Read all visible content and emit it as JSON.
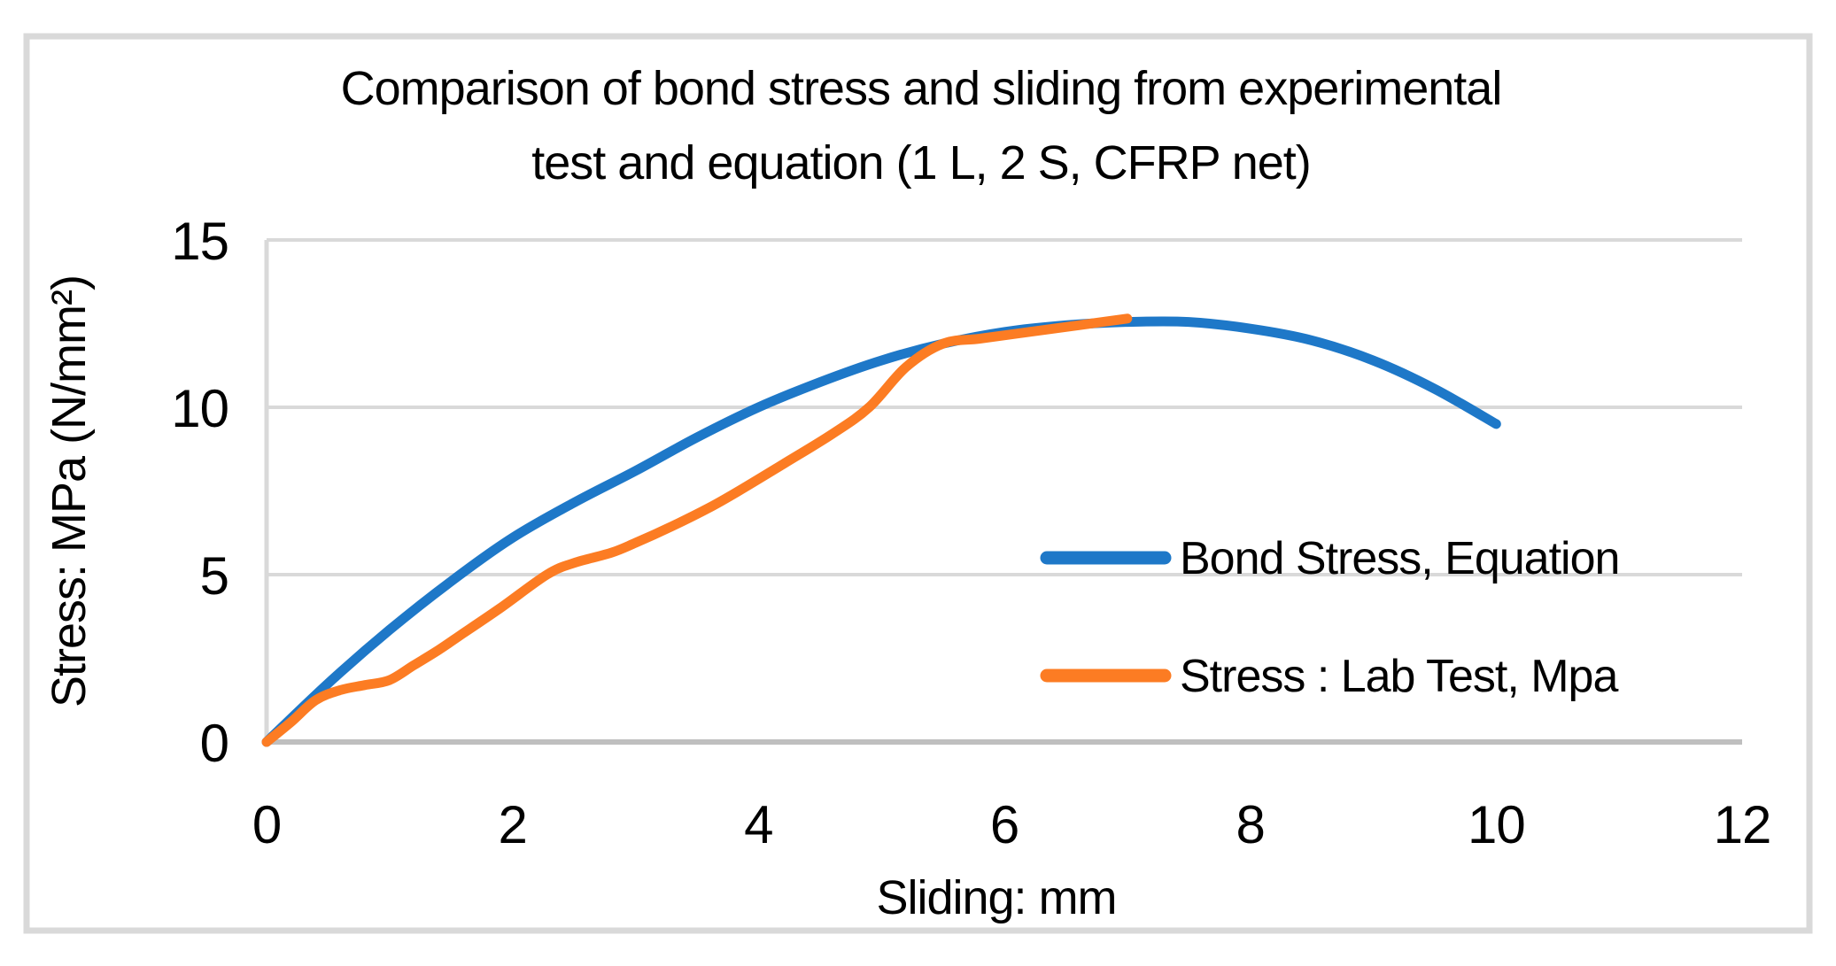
{
  "figure": {
    "border_color": "#D9D9D9",
    "background": "#FFFFFF"
  },
  "chart_data": {
    "type": "line",
    "title": "Comparison of bond stress and sliding from experimental test and equation (1 L, 2 S, CFRP net)",
    "title_lines": [
      "Comparison of bond stress and sliding from experimental",
      "test and equation (1 L, 2 S, CFRP net)"
    ],
    "xlabel": "Sliding: mm",
    "ylabel": "Stress: MPa (N/mm²)",
    "xlim": [
      0,
      12
    ],
    "ylim": [
      0,
      15
    ],
    "xticks": [
      0,
      2,
      4,
      6,
      8,
      10,
      12
    ],
    "yticks": [
      0,
      5,
      10,
      15
    ],
    "grid": "horizontal",
    "grid_color": "#D9D9D9",
    "axis_color": "#BFBFBF",
    "text_color": "#000000",
    "legend_position": "center-right",
    "series": [
      {
        "name": "Bond Stress, Equation",
        "color": "#1E78C8",
        "x": [
          0,
          0.5,
          1,
          1.5,
          2,
          2.5,
          3,
          3.5,
          4,
          4.5,
          5,
          5.5,
          6,
          6.5,
          7,
          7.5,
          8,
          8.5,
          9,
          9.5,
          10
        ],
        "y": [
          0,
          1.75,
          3.35,
          4.8,
          6.1,
          7.15,
          8.1,
          9.1,
          10,
          10.75,
          11.4,
          11.9,
          12.25,
          12.45,
          12.55,
          12.55,
          12.35,
          12.0,
          11.4,
          10.55,
          9.5
        ]
      },
      {
        "name": "Stress : Lab Test, Mpa",
        "color": "#FC7C23",
        "x": [
          0,
          0.2,
          0.4,
          0.6,
          0.8,
          1,
          1.2,
          1.4,
          1.6,
          1.9,
          2.28,
          2.5,
          2.8,
          3,
          3.3,
          3.6,
          3.84,
          4.2,
          4.6,
          4.9,
          5.2,
          5.5,
          5.8,
          6.2,
          6.6,
          7
        ],
        "y": [
          0,
          0.6,
          1.25,
          1.55,
          1.7,
          1.85,
          2.3,
          2.75,
          3.25,
          4.0,
          5.0,
          5.35,
          5.65,
          5.95,
          6.45,
          7.0,
          7.5,
          8.3,
          9.2,
          10.0,
          11.2,
          11.9,
          12.05,
          12.25,
          12.45,
          12.65
        ]
      }
    ]
  }
}
